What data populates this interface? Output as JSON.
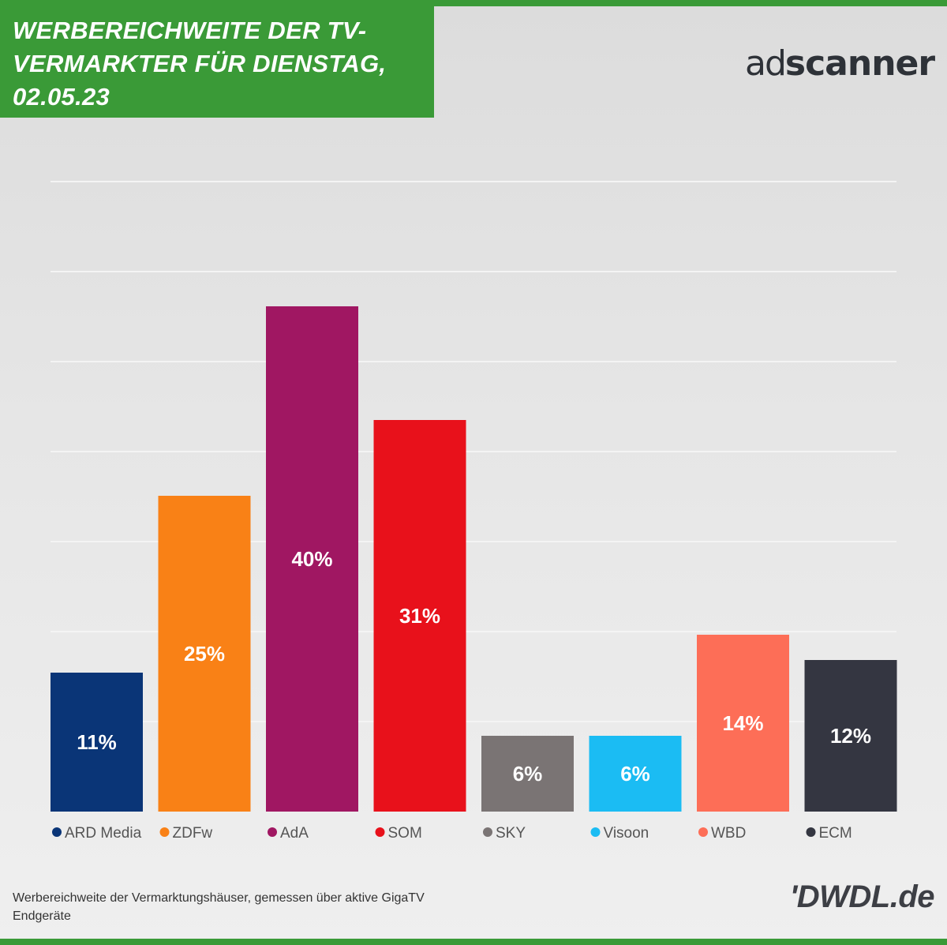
{
  "header": {
    "title": "WERBEREICHWEITE DER TV-VERMARKTER FÜR DIENSTAG, 02.05.23",
    "logo_text_ad": "ad",
    "logo_text_scanner": "scanner"
  },
  "footer": {
    "note": "Werbereichweite der Vermarktungshäuser, gemessen über aktive GigaTV Endgeräte",
    "brand": "'DWDL.de"
  },
  "colors": {
    "accent_green": "#3a9a37",
    "grid": "#f4f4f4"
  },
  "chart_data": {
    "type": "bar",
    "title": "WERBEREICHWEITE DER TV-VERMARKTER FÜR DIENSTAG, 02.05.23",
    "xlabel": "",
    "ylabel": "",
    "ylim": [
      0,
      40
    ],
    "grid": true,
    "legend": "bottom",
    "categories": [
      "ARD Media",
      "ZDFw",
      "AdA",
      "SOM",
      "SKY",
      "Visoon",
      "WBD",
      "ECM"
    ],
    "values": [
      11,
      25,
      40,
      31,
      6,
      6,
      14,
      12
    ],
    "labels": [
      "11%",
      "25%",
      "40%",
      "31%",
      "6%",
      "6%",
      "14%",
      "12%"
    ],
    "colors": [
      "#0a3577",
      "#f98116",
      "#a01762",
      "#e8111b",
      "#7a7474",
      "#1bbcf3",
      "#fd6e57",
      "#343641"
    ]
  }
}
